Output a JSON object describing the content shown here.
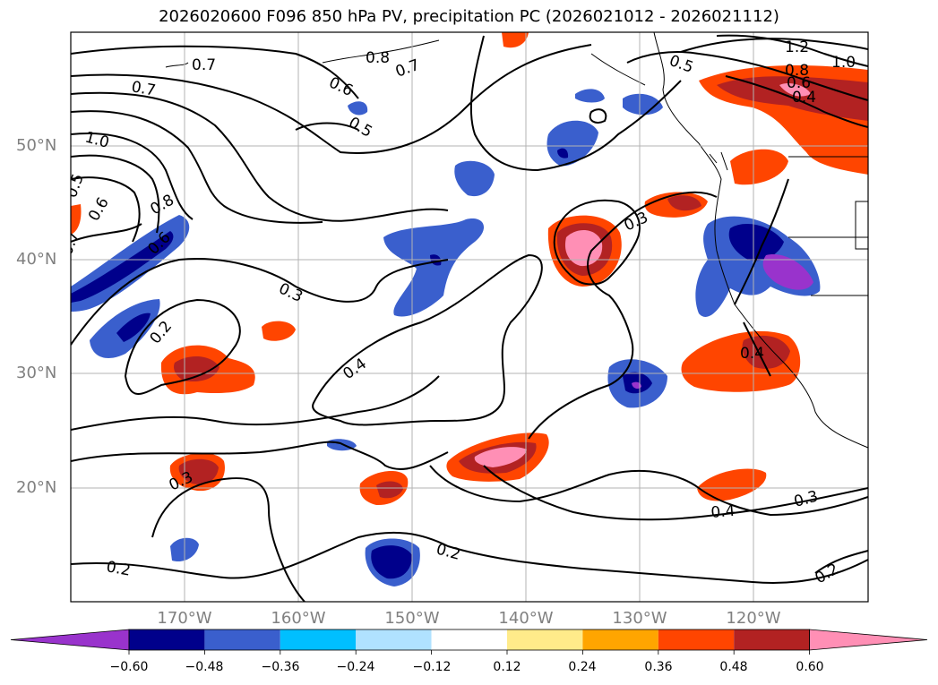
{
  "title": "2026020600 F096 850 hPa PV, precipitation PC (2026021012 - 2026021112)",
  "lat_labels": [
    "50°N",
    "40°N",
    "30°N",
    "20°N"
  ],
  "lon_labels": [
    "170°W",
    "160°W",
    "150°W",
    "140°W",
    "130°W",
    "120°W"
  ],
  "contour_labels": [
    "1.2",
    "1.0",
    "0.8",
    "0.6",
    "0.4",
    "0.5",
    "0.7",
    "0.8",
    "0.7",
    "0.6",
    "0.5",
    "0.7",
    "1.0",
    "0.5",
    "0.6",
    "0.8",
    "0.6",
    "0.7",
    "0.3",
    "0.2",
    "0.4",
    "0.3",
    "0.4",
    "0.2",
    "0.3",
    "0.4",
    "0.3",
    "0.2",
    "0.2"
  ],
  "colorbar": {
    "ticks": [
      "−0.60",
      "−0.48",
      "−0.36",
      "−0.24",
      "−0.12",
      "0.12",
      "0.24",
      "0.36",
      "0.48",
      "0.60"
    ],
    "colors": [
      "#9933cc",
      "#00008b",
      "#3a5fcd",
      "#00bfff",
      "#b0e2ff",
      "#ffffff",
      "#ffeb8a",
      "#ffa500",
      "#ff4500",
      "#b22222",
      "#ff8fb5"
    ]
  }
}
